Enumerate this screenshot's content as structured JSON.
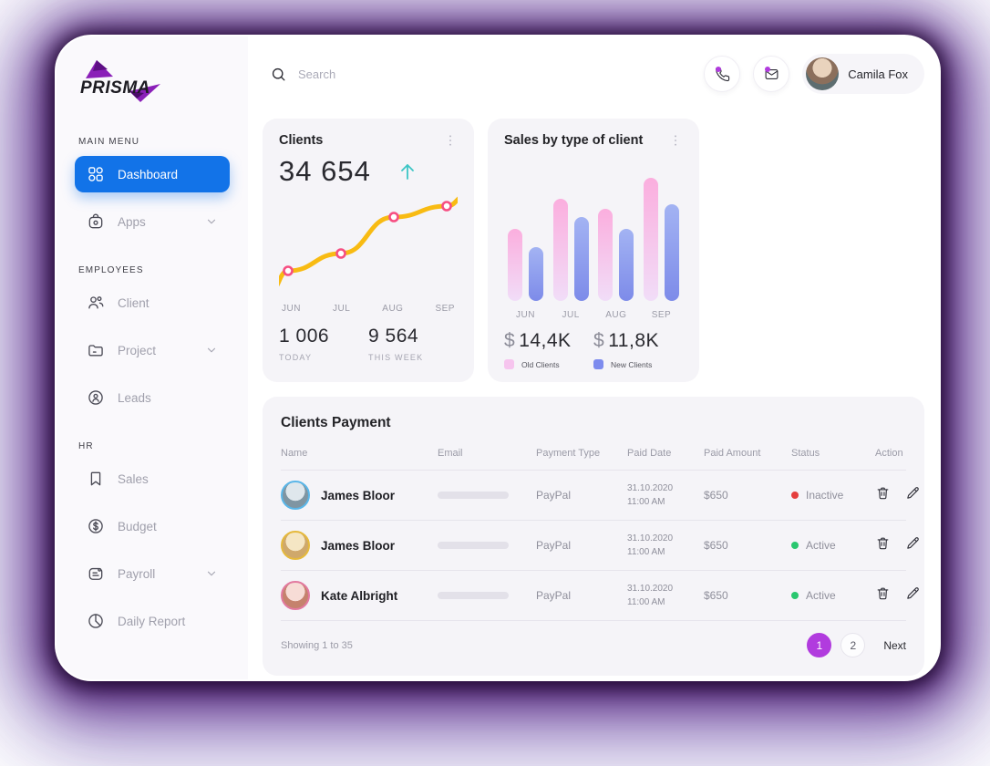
{
  "brand": {
    "name": "PRISMA",
    "accent_color": "#8A1FB8"
  },
  "sidebar": {
    "sections": [
      {
        "label": "MAIN MENU",
        "items": [
          {
            "label": "Dashboard",
            "icon": "grid",
            "active": true,
            "chevron": false
          },
          {
            "label": "Apps",
            "icon": "apps",
            "active": false,
            "chevron": true
          }
        ]
      },
      {
        "label": "EMPLOYEES",
        "items": [
          {
            "label": "Client",
            "icon": "users",
            "active": false,
            "chevron": false
          },
          {
            "label": "Project",
            "icon": "folder",
            "active": false,
            "chevron": true
          },
          {
            "label": "Leads",
            "icon": "badge",
            "active": false,
            "chevron": false
          }
        ]
      },
      {
        "label": "HR",
        "items": [
          {
            "label": "Sales",
            "icon": "bookmark",
            "active": false,
            "chevron": false
          },
          {
            "label": "Budget",
            "icon": "dollar",
            "active": false,
            "chevron": false
          },
          {
            "label": "Payroll",
            "icon": "payroll",
            "active": false,
            "chevron": true
          },
          {
            "label": "Daily Report",
            "icon": "pie",
            "active": false,
            "chevron": false
          }
        ]
      }
    ]
  },
  "topbar": {
    "search_placeholder": "Search",
    "notification_dot_color": "#B13BDE",
    "user": {
      "name": "Camila Fox"
    }
  },
  "clients_card": {
    "title": "Clients",
    "total": "34 654",
    "arrow_color": "#3CC5C5",
    "today": {
      "value": "1 006",
      "label": "TODAY"
    },
    "week": {
      "value": "9 564",
      "label": "THIS WEEK"
    }
  },
  "sales_card": {
    "title": "Sales by type of client",
    "old": {
      "currency": "$",
      "value": "14,4K",
      "label": "Old Clients",
      "swatch": "#F6C4EE"
    },
    "new": {
      "currency": "$",
      "value": "11,8K",
      "label": "New Clients",
      "swatch": "#7D8BEE"
    }
  },
  "chart_data": [
    {
      "type": "line",
      "title": "Clients",
      "x": [
        "JUN",
        "JUL",
        "AUG",
        "SEP"
      ],
      "series": [
        {
          "name": "Clients",
          "values": [
            20,
            38,
            76,
            88
          ]
        }
      ],
      "ylim": [
        0,
        100
      ],
      "line_color": "#F8BB13",
      "marker_color": "#F64E82",
      "grid": false
    },
    {
      "type": "bar",
      "title": "Sales by type of client",
      "categories": [
        "JUN",
        "JUL",
        "AUG",
        "SEP"
      ],
      "series": [
        {
          "name": "Old Clients",
          "values": [
            79,
            112,
            101,
            135
          ],
          "color_top": "#FBAEDE",
          "color_bottom": "#F1DDF8"
        },
        {
          "name": "New Clients",
          "values": [
            59,
            92,
            79,
            106
          ],
          "color_top": "#A3B3F3",
          "color_bottom": "#7D8BE9"
        }
      ],
      "ylim": [
        0,
        152
      ],
      "legend_position": "bottom",
      "grid": false
    }
  ],
  "table": {
    "title": "Clients Payment",
    "columns": [
      "Name",
      "Email",
      "Payment Type",
      "Paid Date",
      "Paid Amount",
      "Status",
      "Action"
    ],
    "rows": [
      {
        "name": "James Bloor",
        "avatar_ring": "#5AB6E8",
        "avatar_top": "#dfe7ec",
        "avatar_bottom": "#7f95a2",
        "payment_type": "PayPal",
        "paid_date": "31.10.2020",
        "paid_time": "11:00 AM",
        "paid_amount": "$650",
        "status": {
          "label": "Inactive",
          "color": "#E53E3E"
        }
      },
      {
        "name": "James Bloor",
        "avatar_ring": "#E5B93C",
        "avatar_top": "#f5e6c4",
        "avatar_bottom": "#cfa86b",
        "payment_type": "PayPal",
        "paid_date": "31.10.2020",
        "paid_time": "11:00 AM",
        "paid_amount": "$650",
        "status": {
          "label": "Active",
          "color": "#29C76F"
        }
      },
      {
        "name": "Kate Albright",
        "avatar_ring": "#E2799F",
        "avatar_top": "#f7dcd6",
        "avatar_bottom": "#c5826d",
        "payment_type": "PayPal",
        "paid_date": "31.10.2020",
        "paid_time": "11:00 AM",
        "paid_amount": "$650",
        "status": {
          "label": "Active",
          "color": "#29C76F"
        }
      }
    ],
    "footer": {
      "showing": "Showing 1 to 35",
      "pages": [
        "1",
        "2"
      ],
      "active_page": "1",
      "active_page_color": "#B13BDE",
      "next": "Next"
    }
  }
}
